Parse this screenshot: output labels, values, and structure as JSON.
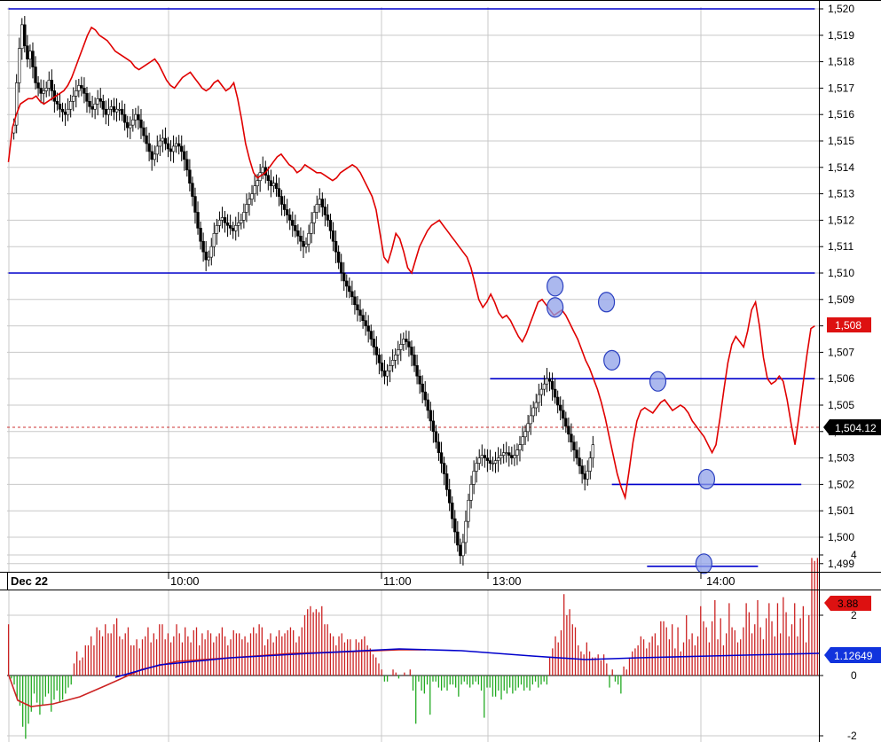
{
  "colors": {
    "price_line": "#e00000",
    "level_line": "#0000cc",
    "marker_fill": "#8fa0e8",
    "marker_stroke": "#2a3fc0",
    "hist_up": "#cc2222",
    "hist_down": "#22aa22",
    "avg_line": "#0000cc",
    "grid": "#c8c8c8",
    "ref_line": "#cc3333"
  },
  "chart_data": [
    {
      "type": "candlestick",
      "date_label": "Dec 22",
      "x_ticks": [
        "10:00",
        "11:00",
        "13:00",
        "14:00"
      ],
      "y_ticks": [
        "1,499",
        "1,500",
        "1,501",
        "1,502",
        "1,503",
        "1,504",
        "1,505",
        "1,506",
        "1,507",
        "1,508",
        "1,509",
        "1,510",
        "1,511",
        "1,512",
        "1,513",
        "1,514",
        "1,515",
        "1,516",
        "1,517",
        "1,518",
        "1,519",
        "1,520"
      ],
      "ylim": [
        1498.4,
        1520.3
      ],
      "n_bars": 300,
      "candle_close": [
        1515.6,
        1517.2,
        1518.5,
        1519.4,
        1518.6,
        1518.1,
        1518.4,
        1517.8,
        1517.2,
        1517.0,
        1516.8,
        1516.9,
        1517.0,
        1517.3,
        1516.9,
        1516.5,
        1516.4,
        1516.2,
        1516.1,
        1516.0,
        1516.2,
        1516.5,
        1516.7,
        1516.9,
        1517.1,
        1517.0,
        1516.8,
        1516.5,
        1516.3,
        1516.2,
        1516.4,
        1516.6,
        1516.5,
        1516.2,
        1516.0,
        1516.2,
        1516.3,
        1516.1,
        1516.2,
        1516.2,
        1516.0,
        1515.7,
        1515.5,
        1515.6,
        1515.8,
        1516.0,
        1515.8,
        1515.5,
        1515.2,
        1514.9,
        1514.6,
        1514.3,
        1514.5,
        1514.8,
        1515.0,
        1515.1,
        1514.9,
        1514.7,
        1514.6,
        1514.8,
        1514.9,
        1514.8,
        1514.6,
        1514.3,
        1513.9,
        1513.4,
        1512.9,
        1512.3,
        1511.7,
        1511.2,
        1510.8,
        1510.5,
        1510.6,
        1511.0,
        1511.5,
        1511.8,
        1512.0,
        1512.1,
        1511.9,
        1511.8,
        1511.7,
        1511.6,
        1511.8,
        1511.9,
        1512.0,
        1512.3,
        1512.6,
        1512.8,
        1513.0,
        1513.3,
        1513.5,
        1513.8,
        1514.0,
        1513.7,
        1513.5,
        1513.3,
        1513.4,
        1513.2,
        1512.9,
        1512.6,
        1512.4,
        1512.2,
        1512.0,
        1511.8,
        1511.6,
        1511.4,
        1511.2,
        1511.0,
        1511.1,
        1511.5,
        1511.9,
        1512.3,
        1512.6,
        1512.8,
        1512.5,
        1512.2,
        1512.0,
        1511.6,
        1511.2,
        1510.8,
        1510.4,
        1510.0,
        1509.7,
        1509.5,
        1509.3,
        1509.1,
        1508.8,
        1508.6,
        1508.4,
        1508.2,
        1508.0,
        1507.8,
        1507.5,
        1507.2,
        1506.9,
        1506.6,
        1506.3,
        1506.1,
        1506.3,
        1506.5,
        1506.7,
        1506.9,
        1507.1,
        1507.3,
        1507.5,
        1507.4,
        1507.2,
        1506.9,
        1506.5,
        1506.1,
        1505.8,
        1505.5,
        1505.2,
        1504.8,
        1504.4,
        1504.0,
        1503.6,
        1503.2,
        1502.8,
        1502.4,
        1501.8,
        1501.3,
        1500.7,
        1500.2,
        1499.7,
        1499.3,
        1499.8,
        1500.6,
        1501.4,
        1502.0,
        1502.5,
        1502.8,
        1503.0,
        1503.1,
        1503.0,
        1502.9,
        1502.8,
        1502.8,
        1502.9,
        1503.0,
        1503.1,
        1503.2,
        1503.2,
        1503.1,
        1503.0,
        1503.1,
        1503.3,
        1503.5,
        1503.8,
        1504.0,
        1504.3,
        1504.6,
        1504.9,
        1505.1,
        1505.4,
        1505.6,
        1505.8,
        1506.0,
        1505.9,
        1505.6,
        1505.3,
        1505.0,
        1504.8,
        1504.5,
        1504.2,
        1503.9,
        1503.6,
        1503.3,
        1503.0,
        1502.7,
        1502.4,
        1502.2,
        1502.5,
        1503.0,
        1503.5
      ]
    },
    {
      "type": "line",
      "values": [
        1514.2,
        1515.5,
        1516.0,
        1516.4,
        1516.5,
        1516.6,
        1516.6,
        1516.7,
        1516.5,
        1516.4,
        1516.5,
        1516.6,
        1516.7,
        1516.8,
        1516.9,
        1517.1,
        1517.4,
        1517.8,
        1518.2,
        1518.6,
        1519.0,
        1519.3,
        1519.2,
        1519.0,
        1518.9,
        1518.8,
        1518.6,
        1518.4,
        1518.3,
        1518.2,
        1518.1,
        1518.0,
        1517.8,
        1517.7,
        1517.8,
        1517.9,
        1518.0,
        1518.1,
        1517.9,
        1517.6,
        1517.3,
        1517.1,
        1517.0,
        1517.2,
        1517.4,
        1517.5,
        1517.6,
        1517.4,
        1517.2,
        1517.0,
        1516.9,
        1517.0,
        1517.2,
        1517.3,
        1517.1,
        1516.9,
        1517.0,
        1517.2,
        1516.6,
        1515.8,
        1514.9,
        1514.3,
        1513.8,
        1513.6,
        1513.7,
        1513.8,
        1514.0,
        1514.2,
        1514.4,
        1514.5,
        1514.3,
        1514.1,
        1514.0,
        1513.8,
        1513.9,
        1514.1,
        1514.0,
        1513.9,
        1513.8,
        1513.8,
        1513.7,
        1513.6,
        1513.5,
        1513.6,
        1513.8,
        1513.9,
        1514.0,
        1514.1,
        1514.0,
        1513.8,
        1513.5,
        1513.2,
        1512.9,
        1512.4,
        1511.5,
        1510.6,
        1510.4,
        1510.9,
        1511.5,
        1511.3,
        1510.8,
        1510.2,
        1510.0,
        1510.5,
        1511.0,
        1511.3,
        1511.6,
        1511.8,
        1511.9,
        1512.0,
        1511.8,
        1511.6,
        1511.4,
        1511.2,
        1511.0,
        1510.8,
        1510.6,
        1510.2,
        1509.6,
        1509.0,
        1508.7,
        1508.9,
        1509.2,
        1508.9,
        1508.5,
        1508.3,
        1508.4,
        1508.2,
        1507.9,
        1507.6,
        1507.4,
        1507.7,
        1508.1,
        1508.5,
        1508.9,
        1509.0,
        1508.8,
        1508.6,
        1508.4,
        1508.5,
        1508.6,
        1508.4,
        1508.1,
        1507.8,
        1507.5,
        1507.1,
        1506.7,
        1506.4,
        1506.0,
        1505.6,
        1505.1,
        1504.5,
        1503.8,
        1503.1,
        1502.4,
        1501.9,
        1501.5,
        1502.5,
        1503.6,
        1504.4,
        1504.8,
        1504.9,
        1504.8,
        1504.7,
        1504.9,
        1505.1,
        1505.2,
        1505.0,
        1504.8,
        1504.9,
        1505.0,
        1504.9,
        1504.7,
        1504.4,
        1504.2,
        1504.0,
        1503.8,
        1503.5,
        1503.2,
        1503.5,
        1504.5,
        1505.6,
        1506.6,
        1507.3,
        1507.6,
        1507.4,
        1507.2,
        1507.8,
        1508.6,
        1508.9,
        1508.0,
        1506.8,
        1506.0,
        1505.8,
        1505.9,
        1506.1,
        1505.9,
        1505.2,
        1504.3,
        1503.5,
        1504.6,
        1505.8,
        1506.9,
        1507.9,
        1508.0
      ]
    },
    {
      "type": "bar",
      "y_ticks": [
        "-2",
        "0",
        "2",
        "4"
      ],
      "ylim": [
        -2.3,
        4.3
      ],
      "series": [
        {
          "values": [
            1.7,
            -0.1,
            -0.3,
            -0.8,
            -1.0,
            -1.7,
            -2.1,
            -1.6,
            -1.2,
            -0.6,
            -0.9,
            -1.3,
            -1.0,
            -0.7,
            -0.6,
            -1.2,
            -0.8,
            -0.5,
            -0.9,
            -0.8,
            -0.6,
            -0.4,
            -0.3,
            0.4,
            0.8,
            0.5,
            0.6,
            1.0,
            1.0,
            1.3,
            1.0,
            1.6,
            1.5,
            1.3,
            1.7,
            1.4,
            1.4,
            1.7,
            1.9,
            1.3,
            1.2,
            1.4,
            1.6,
            1.0,
            1.0,
            1.2,
            0.9,
            1.2,
            1.3,
            1.6,
            1.1,
            1.4,
            1.2,
            1.7,
            1.7,
            1.2,
            1.4,
            1.1,
            1.3,
            1.7,
            1.4,
            1.1,
            1.6,
            1.3,
            1.1,
            1.5,
            1.6,
            1.0,
            1.4,
            1.2,
            1.5,
            1.4,
            1.1,
            1.3,
            1.4,
            1.6,
            1.3,
            1.0,
            1.2,
            1.5,
            1.4,
            1.4,
            1.2,
            1.3,
            1.1,
            1.4,
            1.6,
            1.4,
            1.7,
            1.6,
            1.0,
            1.2,
            1.4,
            1.1,
            1.3,
            1.5,
            1.3,
            1.4,
            1.5,
            1.6,
            1.5,
            1.1,
            1.3,
            1.6,
            2.0,
            2.2,
            2.3,
            2.1,
            2.2,
            2.1,
            2.3,
            1.7,
            1.7,
            1.4,
            1.3,
            1.0,
            1.3,
            1.4,
            1.1,
            1.2,
            1.2,
            0.8,
            1.2,
            1.1,
            1.2,
            1.3,
            1.0,
            0.9,
            0.7,
            0.6,
            0.4,
            0.2,
            -0.2,
            -0.2,
            0.0,
            0.2,
            0.1,
            -0.1,
            0.0,
            0.1,
            0.0,
            0.2,
            -0.5,
            -1.6,
            -0.2,
            -0.5,
            -0.6,
            -0.3,
            -1.3,
            -0.2,
            -0.2,
            -0.4,
            -0.5,
            -0.4,
            -0.5,
            -0.3,
            -0.3,
            -0.4,
            -0.7,
            -0.3,
            -0.2,
            -0.3,
            -0.4,
            -0.3,
            -0.2,
            -0.3,
            -0.5,
            -1.4,
            -0.4,
            -0.4,
            -0.7,
            -0.7,
            -0.5,
            -0.8,
            -0.5,
            -0.6,
            -0.4,
            -0.6,
            -0.5,
            -0.4,
            -0.3,
            -0.5,
            -0.4,
            -0.5,
            -0.3,
            -0.2,
            -0.4,
            -0.3,
            -0.2,
            -0.3,
            0.6,
            0.9,
            1.3,
            1.1,
            1.5,
            2.7,
            2.0,
            2.2,
            1.7,
            1.6,
            1.0,
            0.8,
            0.7,
            1.1,
            0.8,
            0.6,
            0.6,
            0.7,
            0.5,
            0.7,
            0.4,
            -0.4,
            0.2,
            -0.2,
            -0.3,
            -0.6,
            0.3,
            0.2,
            0.6,
            0.8,
            0.9,
            1.0,
            1.3,
            1.2,
            0.9,
            1.1,
            1.3,
            1.4,
            1.0,
            1.8,
            1.8,
            1.6,
            1.2,
            1.7,
            0.9,
            1.6,
            0.8,
            1.1,
            2.0,
            1.2,
            1.4,
            1.0,
            1.3,
            2.3,
            1.8,
            1.6,
            1.1,
            1.8,
            2.5,
            1.2,
            1.9,
            1.0,
            1.4,
            2.4,
            1.6,
            1.5,
            1.1,
            1.2,
            1.6,
            2.4,
            2.1,
            1.4,
            1.7,
            2.5,
            1.6,
            1.2,
            1.9,
            2.4,
            1.8,
            1.3,
            2.4,
            1.4,
            2.6,
            2.1,
            1.3,
            1.7,
            2.4,
            1.3,
            1.9,
            2.3,
            1.1,
            2.0,
            3.9,
            3.8,
            3.9
          ]
        }
      ]
    }
  ],
  "price_badge": "1,508",
  "last_badge": "1,504.12",
  "osc_badge": "3.88",
  "avg_badge": "1.12649"
}
